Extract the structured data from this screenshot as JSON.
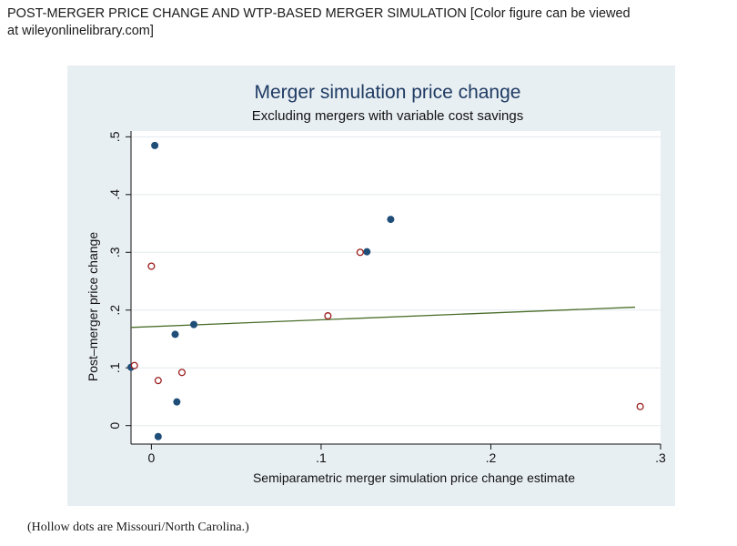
{
  "caption": {
    "line1": "POST-MERGER PRICE CHANGE AND WTP-BASED MERGER SIMULATION  [Color figure can be viewed",
    "line2": "at wileyonlinelibrary.com]"
  },
  "note": "(Hollow dots are Missouri/North Carolina.)",
  "chart_data": {
    "type": "scatter",
    "title": "Merger simulation price change",
    "subtitle": "Excluding mergers with variable cost savings",
    "xlabel": "Semiparametric merger simulation price change estimate",
    "ylabel": "Post–merger price change",
    "xlim": [
      -0.012,
      0.3
    ],
    "ylim": [
      -0.032,
      0.51
    ],
    "x_ticks": [
      {
        "value": 0,
        "label": "0"
      },
      {
        "value": 0.1,
        "label": ".1"
      },
      {
        "value": 0.2,
        "label": ".2"
      },
      {
        "value": 0.3,
        "label": ".3"
      }
    ],
    "y_ticks": [
      {
        "value": 0,
        "label": "0"
      },
      {
        "value": 0.1,
        "label": ".1"
      },
      {
        "value": 0.2,
        "label": ".2"
      },
      {
        "value": 0.3,
        "label": ".3"
      },
      {
        "value": 0.4,
        "label": ".4"
      },
      {
        "value": 0.5,
        "label": ".5"
      }
    ],
    "grid": true,
    "colors": {
      "filled": "#1f4e79",
      "hollow": "#9b1c1c",
      "fit_line": "#4a6e2a",
      "grid": "#ffffff",
      "plot_bg": "#ffffff",
      "panel_bg": "#e8eff3"
    },
    "series": [
      {
        "style": "filled",
        "points": [
          [
            0.002,
            0.485
          ],
          [
            0.141,
            0.357
          ],
          [
            0.127,
            0.301
          ],
          [
            0.025,
            0.175
          ],
          [
            0.014,
            0.158
          ],
          [
            -0.012,
            0.101
          ],
          [
            0.015,
            0.041
          ],
          [
            0.004,
            -0.019
          ]
        ]
      },
      {
        "style": "hollow",
        "points": [
          [
            0.0,
            0.276
          ],
          [
            0.123,
            0.3
          ],
          [
            0.104,
            0.19
          ],
          [
            -0.01,
            0.104
          ],
          [
            0.004,
            0.078
          ],
          [
            0.018,
            0.092
          ],
          [
            0.288,
            0.033
          ]
        ]
      }
    ],
    "fit_line": {
      "x": [
        -0.012,
        0.285
      ],
      "y": [
        0.17,
        0.205
      ]
    }
  }
}
